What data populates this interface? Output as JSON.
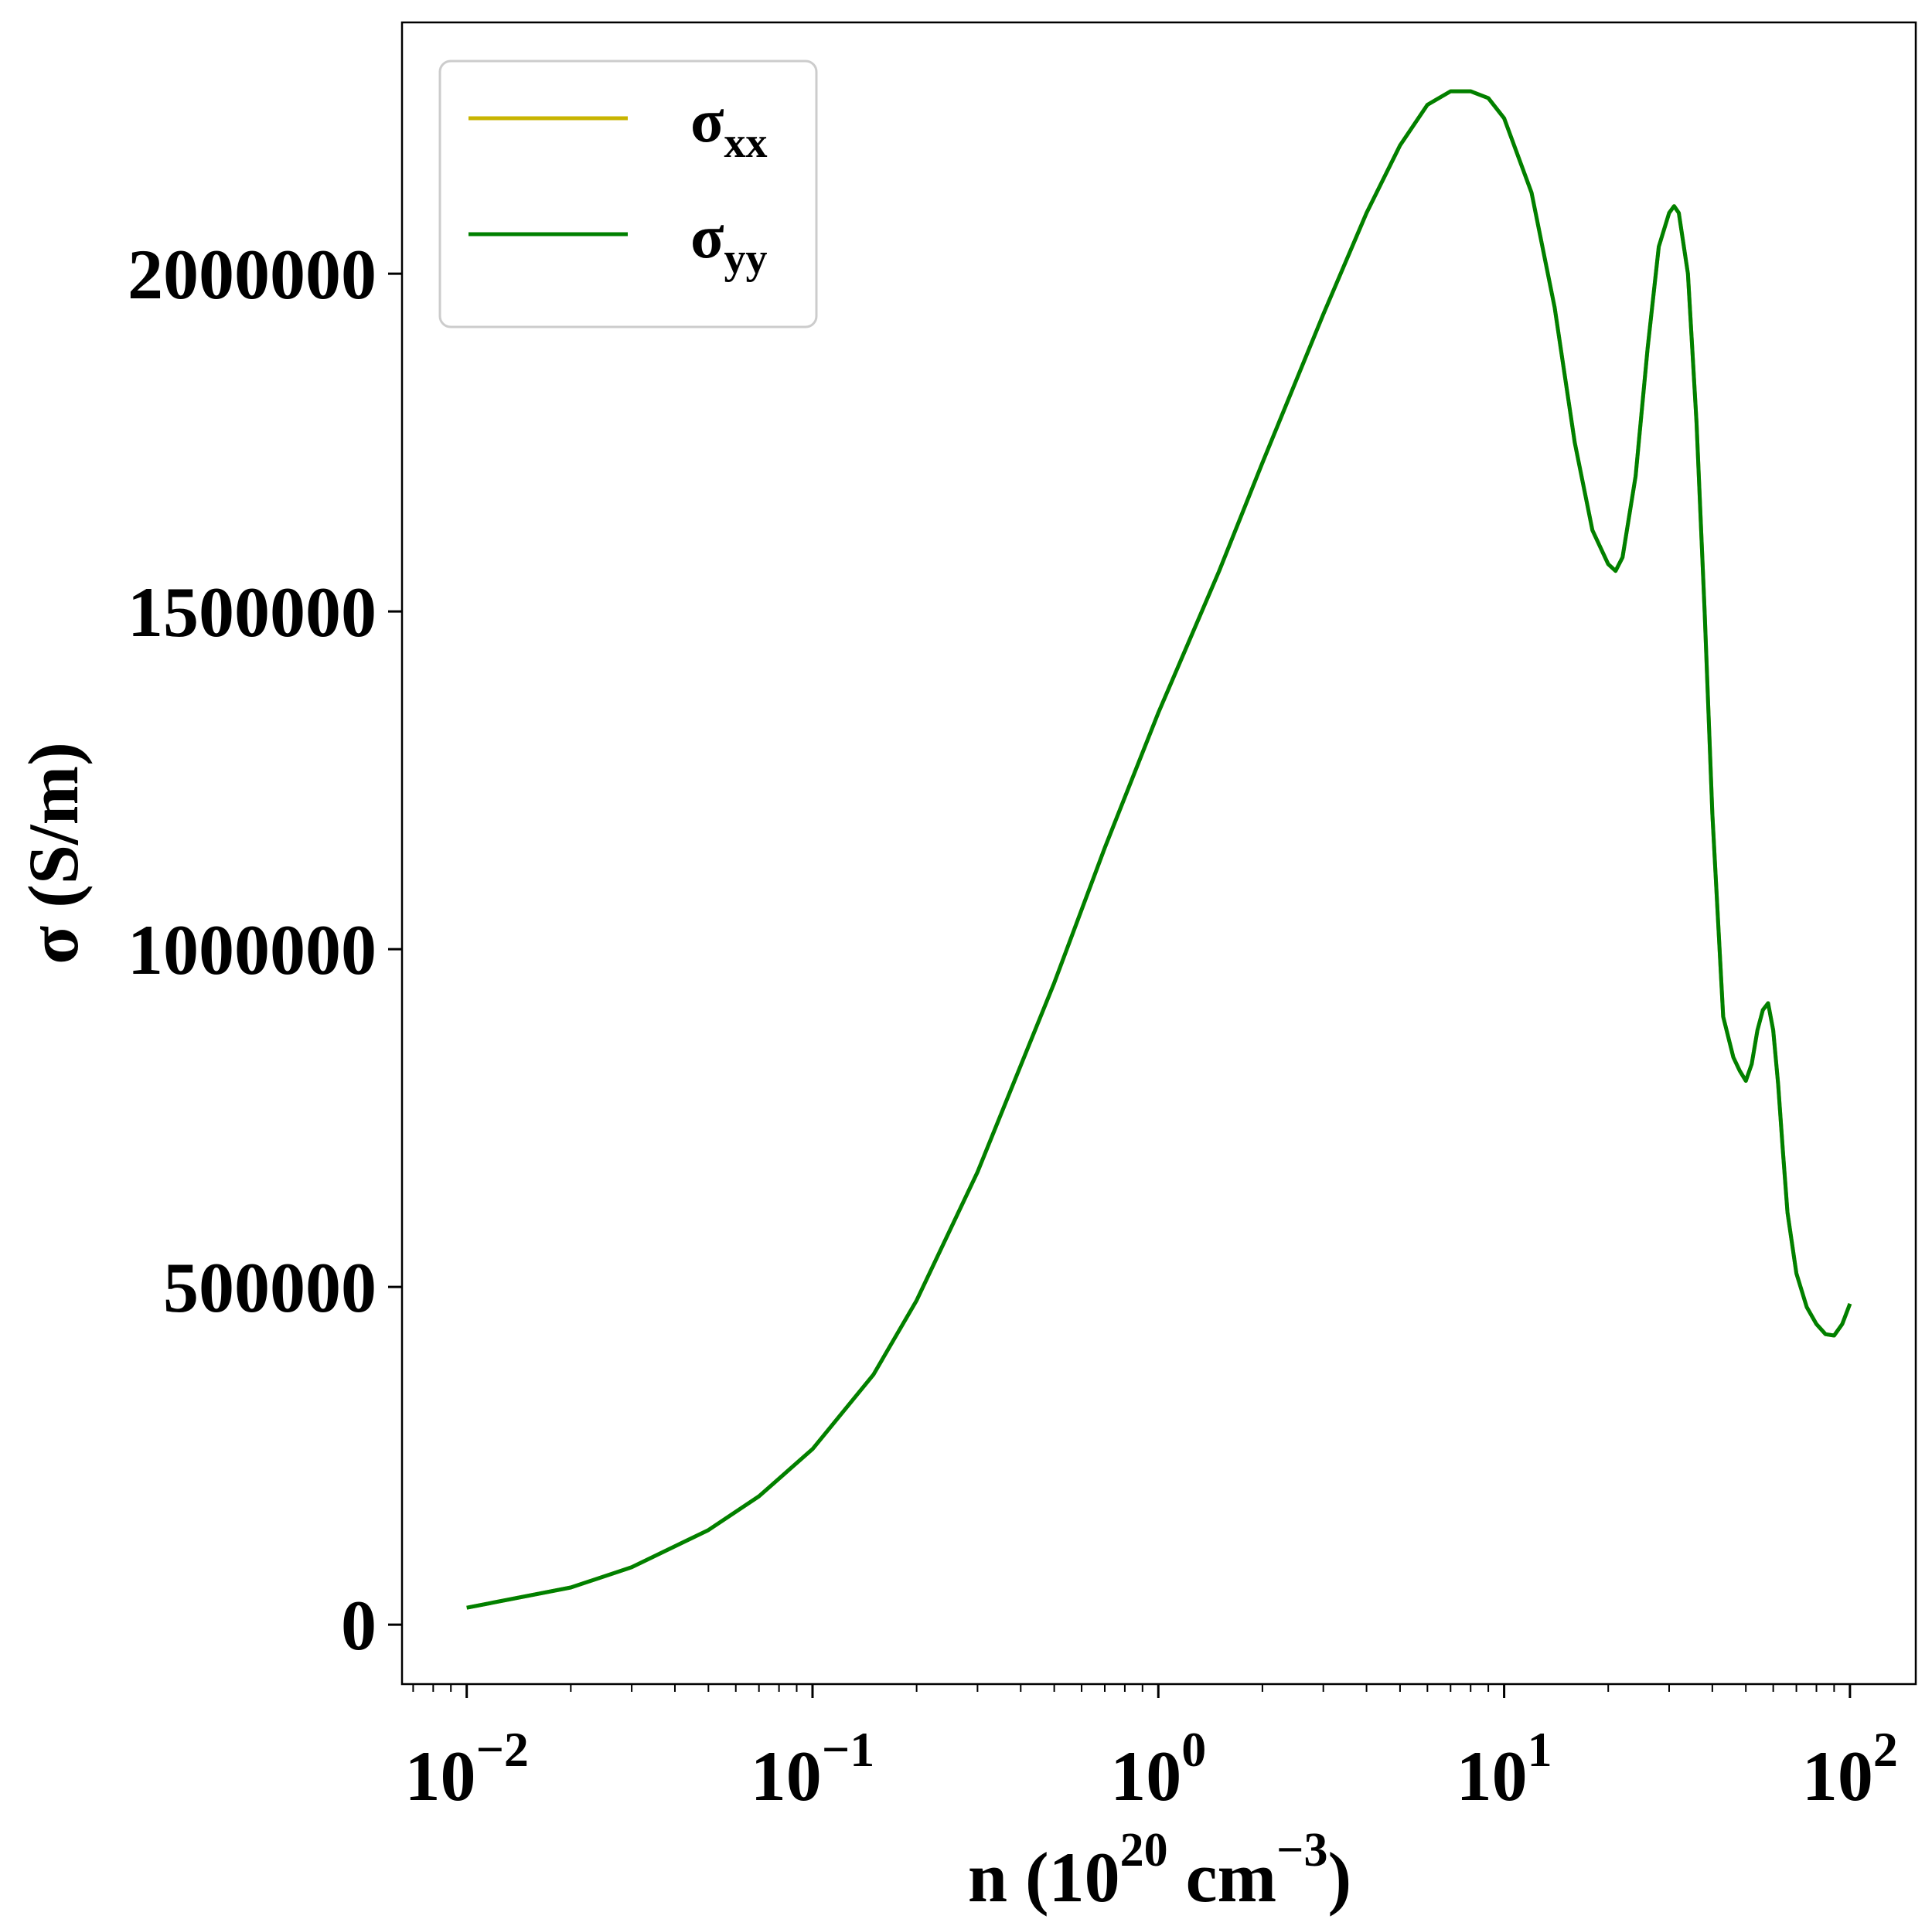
{
  "chart_data": {
    "type": "line",
    "xscale": "log",
    "xlim": [
      0.0065,
      155
    ],
    "ylim": [
      -88000,
      2372000
    ],
    "xlabel": {
      "base": "n (10",
      "sup1": "20",
      "mid": " cm",
      "sup2": "−3",
      "end": ")"
    },
    "ylabel": "σ (S/m)",
    "x_ticks": [
      {
        "value": 0.01,
        "base": "10",
        "exp": "−2"
      },
      {
        "value": 0.1,
        "base": "10",
        "exp": "−1"
      },
      {
        "value": 1,
        "base": "10",
        "exp": "0"
      },
      {
        "value": 10,
        "base": "10",
        "exp": "1"
      },
      {
        "value": 100,
        "base": "10",
        "exp": "2"
      }
    ],
    "y_ticks": [
      {
        "value": 0,
        "label": "0"
      },
      {
        "value": 500000,
        "label": "500000"
      },
      {
        "value": 1000000,
        "label": "1000000"
      },
      {
        "value": 1500000,
        "label": "1500000"
      },
      {
        "value": 2000000,
        "label": "2000000"
      }
    ],
    "grid": false,
    "legend_position": "upper-left",
    "series": [
      {
        "key": "xx",
        "symbol": "σ",
        "sub": "xx",
        "color": "#c8b400",
        "x": [
          0.01,
          0.02,
          0.03,
          0.05,
          0.07,
          0.1,
          0.15,
          0.2,
          0.3,
          0.5,
          0.7,
          1.0,
          1.5,
          2.0,
          3.0,
          4.0,
          5.0,
          6.0,
          7.0,
          8.0,
          9.0,
          10.0,
          12.0,
          14.0,
          16.0,
          18.0,
          20.0,
          21.0,
          22.0,
          24.0,
          26.0,
          28.0,
          30.0,
          31.0,
          32.0,
          34.0,
          36.0,
          38.0,
          40.0,
          43.0,
          46.0,
          48.0,
          50.0,
          52.0,
          54.0,
          56.0,
          58.0,
          60.0,
          62.0,
          64.0,
          66.0,
          70.0,
          75.0,
          80.0,
          85.0,
          90.0,
          95.0,
          100.0
        ],
        "y": [
          25000,
          55000,
          85000,
          140000,
          190000,
          260000,
          370000,
          480000,
          670000,
          950000,
          1150000,
          1350000,
          1560000,
          1720000,
          1940000,
          2090000,
          2190000,
          2250000,
          2270000,
          2270000,
          2260000,
          2230000,
          2120000,
          1950000,
          1750000,
          1620000,
          1570000,
          1560000,
          1580000,
          1700000,
          1890000,
          2040000,
          2090000,
          2100000,
          2090000,
          2000000,
          1780000,
          1500000,
          1200000,
          900000,
          840000,
          820000,
          805000,
          830000,
          880000,
          910000,
          920000,
          880000,
          800000,
          700000,
          610000,
          520000,
          470000,
          445000,
          430000,
          428000,
          445000,
          475000
        ]
      },
      {
        "key": "yy",
        "symbol": "σ",
        "sub": "yy",
        "color": "#008000",
        "x": [
          0.01,
          0.02,
          0.03,
          0.05,
          0.07,
          0.1,
          0.15,
          0.2,
          0.3,
          0.5,
          0.7,
          1.0,
          1.5,
          2.0,
          3.0,
          4.0,
          5.0,
          6.0,
          7.0,
          8.0,
          9.0,
          10.0,
          12.0,
          14.0,
          16.0,
          18.0,
          20.0,
          21.0,
          22.0,
          24.0,
          26.0,
          28.0,
          30.0,
          31.0,
          32.0,
          34.0,
          36.0,
          38.0,
          40.0,
          43.0,
          46.0,
          48.0,
          50.0,
          52.0,
          54.0,
          56.0,
          58.0,
          60.0,
          62.0,
          64.0,
          66.0,
          70.0,
          75.0,
          80.0,
          85.0,
          90.0,
          95.0,
          100.0
        ],
        "y": [
          25000,
          55000,
          85000,
          140000,
          190000,
          260000,
          370000,
          480000,
          670000,
          950000,
          1150000,
          1350000,
          1560000,
          1720000,
          1940000,
          2090000,
          2190000,
          2250000,
          2270000,
          2270000,
          2260000,
          2230000,
          2120000,
          1950000,
          1750000,
          1620000,
          1570000,
          1560000,
          1580000,
          1700000,
          1890000,
          2040000,
          2090000,
          2100000,
          2090000,
          2000000,
          1780000,
          1500000,
          1200000,
          900000,
          840000,
          820000,
          805000,
          830000,
          880000,
          910000,
          920000,
          880000,
          800000,
          700000,
          610000,
          520000,
          470000,
          445000,
          430000,
          428000,
          445000,
          475000
        ]
      }
    ]
  }
}
